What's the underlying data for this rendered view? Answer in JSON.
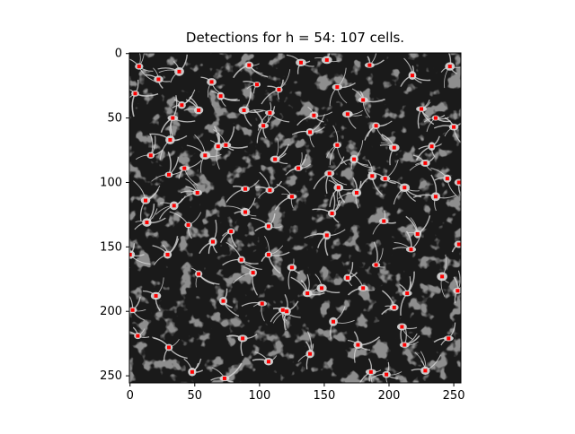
{
  "figure": {
    "title": "Detections for h = 54: 107 cells."
  },
  "image": {
    "description_icon": "microscopy-image",
    "background_color": "#1a1a1a",
    "cell_color": "#d8d8d8",
    "marker_color": "#ff0000"
  },
  "axes": {
    "x_ticks": [
      "0",
      "50",
      "100",
      "150",
      "200",
      "250"
    ],
    "y_ticks": [
      "0",
      "50",
      "100",
      "150",
      "200",
      "250"
    ],
    "x_range": [
      0,
      255
    ],
    "y_range": [
      0,
      255
    ]
  },
  "detections": [
    [
      7,
      10
    ],
    [
      92,
      9
    ],
    [
      132,
      7
    ],
    [
      152,
      5
    ],
    [
      38,
      14
    ],
    [
      185,
      9
    ],
    [
      247,
      10
    ],
    [
      22,
      20
    ],
    [
      63,
      22
    ],
    [
      98,
      24
    ],
    [
      160,
      26
    ],
    [
      115,
      28
    ],
    [
      218,
      17
    ],
    [
      40,
      40
    ],
    [
      4,
      31
    ],
    [
      70,
      33
    ],
    [
      180,
      36
    ],
    [
      225,
      43
    ],
    [
      53,
      44
    ],
    [
      33,
      50
    ],
    [
      88,
      44
    ],
    [
      168,
      47
    ],
    [
      108,
      46
    ],
    [
      142,
      48
    ],
    [
      236,
      50
    ],
    [
      250,
      57
    ],
    [
      103,
      56
    ],
    [
      190,
      56
    ],
    [
      31,
      67
    ],
    [
      139,
      61
    ],
    [
      74,
      71
    ],
    [
      68,
      72
    ],
    [
      160,
      71
    ],
    [
      204,
      73
    ],
    [
      16,
      79
    ],
    [
      233,
      72
    ],
    [
      112,
      82
    ],
    [
      173,
      82
    ],
    [
      58,
      79
    ],
    [
      130,
      89
    ],
    [
      228,
      85
    ],
    [
      30,
      94
    ],
    [
      42,
      89
    ],
    [
      154,
      93
    ],
    [
      187,
      95
    ],
    [
      197,
      97
    ],
    [
      245,
      97
    ],
    [
      212,
      104
    ],
    [
      89,
      105
    ],
    [
      52,
      108
    ],
    [
      12,
      114
    ],
    [
      161,
      104
    ],
    [
      108,
      106
    ],
    [
      125,
      111
    ],
    [
      175,
      108
    ],
    [
      254,
      100
    ],
    [
      34,
      118
    ],
    [
      89,
      123
    ],
    [
      236,
      111
    ],
    [
      13,
      131
    ],
    [
      45,
      133
    ],
    [
      156,
      124
    ],
    [
      196,
      130
    ],
    [
      78,
      138
    ],
    [
      107,
      134
    ],
    [
      64,
      146
    ],
    [
      152,
      141
    ],
    [
      222,
      140
    ],
    [
      0,
      156
    ],
    [
      29,
      156
    ],
    [
      217,
      152
    ],
    [
      254,
      148
    ],
    [
      53,
      171
    ],
    [
      86,
      160
    ],
    [
      107,
      156
    ],
    [
      125,
      166
    ],
    [
      190,
      164
    ],
    [
      20,
      188
    ],
    [
      241,
      173
    ],
    [
      95,
      170
    ],
    [
      168,
      174
    ],
    [
      180,
      182
    ],
    [
      214,
      186
    ],
    [
      253,
      184
    ],
    [
      148,
      182
    ],
    [
      72,
      192
    ],
    [
      137,
      186
    ],
    [
      102,
      194
    ],
    [
      118,
      199
    ],
    [
      204,
      197
    ],
    [
      2,
      199
    ],
    [
      121,
      200
    ],
    [
      157,
      208
    ],
    [
      210,
      212
    ],
    [
      6,
      219
    ],
    [
      87,
      221
    ],
    [
      246,
      221
    ],
    [
      30,
      228
    ],
    [
      176,
      226
    ],
    [
      212,
      226
    ],
    [
      139,
      233
    ],
    [
      107,
      239
    ],
    [
      48,
      247
    ],
    [
      186,
      247
    ],
    [
      73,
      252
    ],
    [
      228,
      246
    ],
    [
      198,
      249
    ]
  ]
}
